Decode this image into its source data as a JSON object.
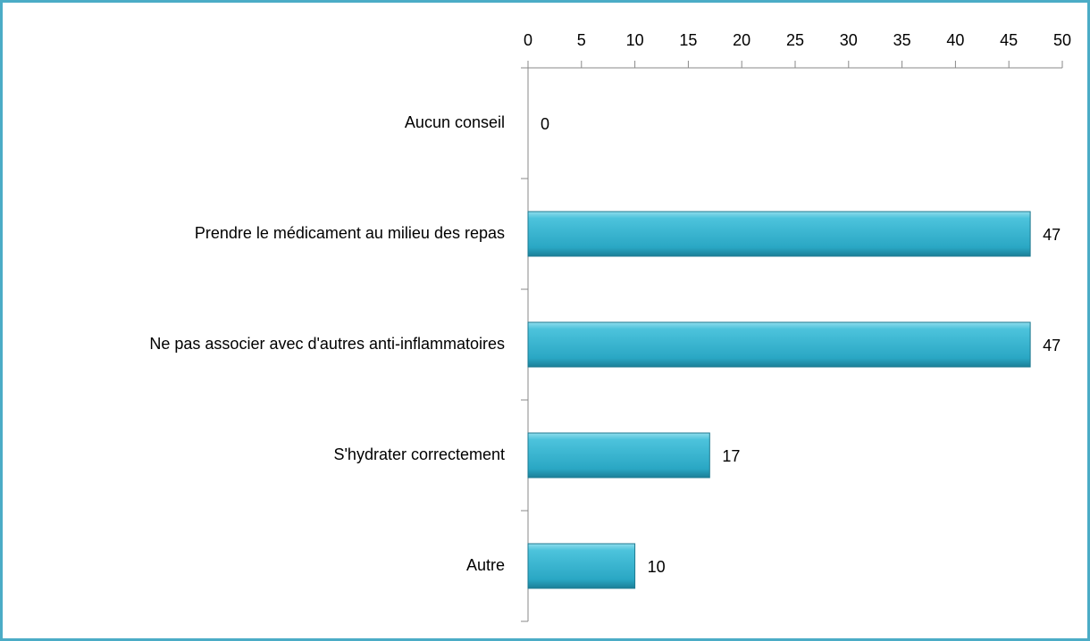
{
  "chart_data": {
    "type": "bar",
    "orientation": "horizontal",
    "categories": [
      "Aucun conseil",
      "Prendre le médicament au milieu des repas",
      "Ne pas associer avec d'autres anti-inflammatoires",
      "S'hydrater correctement",
      "Autre"
    ],
    "values": [
      0,
      47,
      47,
      17,
      10
    ],
    "color": "#31b0cd",
    "xlim": [
      0,
      50
    ],
    "xticks": [
      0,
      5,
      10,
      15,
      20,
      25,
      30,
      35,
      40,
      45,
      50
    ],
    "grid": false
  }
}
